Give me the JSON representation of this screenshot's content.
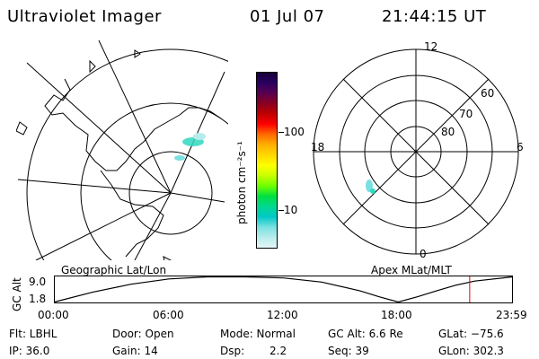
{
  "header": {
    "title": "Ultraviolet Imager",
    "date": "01 Jul 07",
    "time": "21:44:15 UT"
  },
  "left_map": {
    "label": "Geographic Lat/Lon"
  },
  "right_map": {
    "label": "Apex MLat/MLT",
    "mlt_labels": {
      "top": "12",
      "left": "18",
      "right": "6",
      "bottom": "0"
    },
    "lat_labels": [
      "60",
      "70",
      "80"
    ]
  },
  "colorbar": {
    "unit_label": "photon cm⁻²s⁻¹",
    "tick_labels": [
      "100",
      "10"
    ],
    "colors": [
      "#15003a",
      "#2a0060",
      "#5a0050",
      "#8a0020",
      "#c00000",
      "#ff0000",
      "#ff6a00",
      "#ffb000",
      "#ffd800",
      "#ffff00",
      "#c8ff00",
      "#6fff00",
      "#00e040",
      "#00d890",
      "#00c8c8",
      "#7ae0e0",
      "#b8ecec",
      "#e4f6f6"
    ]
  },
  "altitude_plot": {
    "ylabel": "GC Alt",
    "y_ticks": [
      "9.0",
      "1.8"
    ],
    "x_ticks": [
      "00:00",
      "06:00",
      "12:00",
      "18:00",
      "23:59"
    ],
    "orbit": [
      {
        "t": 0,
        "alt": 1.8
      },
      {
        "t": 2,
        "alt": 4.6
      },
      {
        "t": 4,
        "alt": 6.9
      },
      {
        "t": 6,
        "alt": 8.4
      },
      {
        "t": 8,
        "alt": 9.0
      },
      {
        "t": 10,
        "alt": 9.0
      },
      {
        "t": 12,
        "alt": 8.7
      },
      {
        "t": 14,
        "alt": 7.5
      },
      {
        "t": 16,
        "alt": 5.0
      },
      {
        "t": 17,
        "alt": 3.3
      },
      {
        "t": 18,
        "alt": 1.8
      },
      {
        "t": 19,
        "alt": 3.3
      },
      {
        "t": 20,
        "alt": 5.0
      },
      {
        "t": 21,
        "alt": 6.6
      },
      {
        "t": 22,
        "alt": 7.8
      },
      {
        "t": 23.98,
        "alt": 9.0
      }
    ],
    "current_time_hours": 21.74,
    "marker_color": "#e00000"
  },
  "status": {
    "flt": "Flt: LBHL",
    "ip": "IP: 36.0",
    "door": "Door: Open",
    "gain": "Gain: 14",
    "mode": "Mode: Normal",
    "dsp_label": "Dsp:",
    "dsp_value": "2.2",
    "gc_alt": "GC Alt: 6.6 Re",
    "seq": "Seq: 39",
    "glat": "GLat: −75.6",
    "glon": "GLon: 302.3"
  }
}
